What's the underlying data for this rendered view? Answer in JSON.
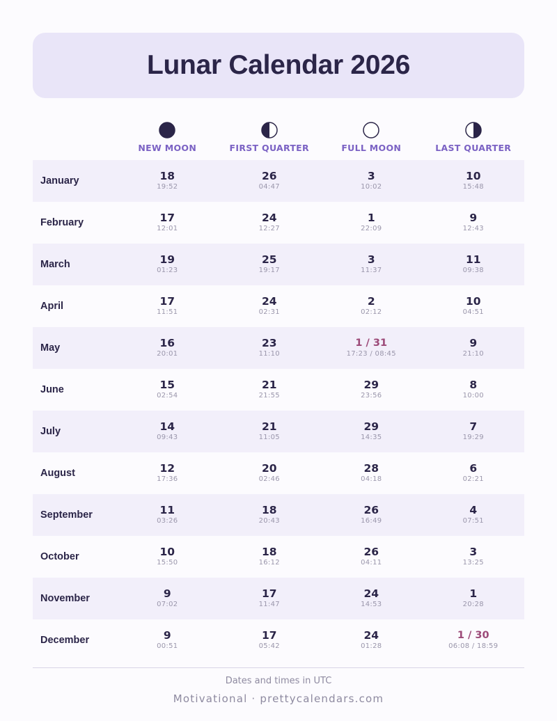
{
  "title": "Lunar Calendar 2026",
  "phases": [
    {
      "label": "NEW MOON",
      "icon": "new-moon-icon"
    },
    {
      "label": "FIRST QUARTER",
      "icon": "first-quarter-moon-icon"
    },
    {
      "label": "FULL MOON",
      "icon": "full-moon-icon"
    },
    {
      "label": "LAST QUARTER",
      "icon": "last-quarter-moon-icon"
    }
  ],
  "months": [
    {
      "name": "January",
      "cells": [
        {
          "day": "18",
          "time": "19:52"
        },
        {
          "day": "26",
          "time": "04:47"
        },
        {
          "day": "3",
          "time": "10:02"
        },
        {
          "day": "10",
          "time": "15:48"
        }
      ]
    },
    {
      "name": "February",
      "cells": [
        {
          "day": "17",
          "time": "12:01"
        },
        {
          "day": "24",
          "time": "12:27"
        },
        {
          "day": "1",
          "time": "22:09"
        },
        {
          "day": "9",
          "time": "12:43"
        }
      ]
    },
    {
      "name": "March",
      "cells": [
        {
          "day": "19",
          "time": "01:23"
        },
        {
          "day": "25",
          "time": "19:17"
        },
        {
          "day": "3",
          "time": "11:37"
        },
        {
          "day": "11",
          "time": "09:38"
        }
      ]
    },
    {
      "name": "April",
      "cells": [
        {
          "day": "17",
          "time": "11:51"
        },
        {
          "day": "24",
          "time": "02:31"
        },
        {
          "day": "2",
          "time": "02:12"
        },
        {
          "day": "10",
          "time": "04:51"
        }
      ]
    },
    {
      "name": "May",
      "cells": [
        {
          "day": "16",
          "time": "20:01"
        },
        {
          "day": "23",
          "time": "11:10"
        },
        {
          "day": "1 / 31",
          "time": "17:23 / 08:45",
          "special": true
        },
        {
          "day": "9",
          "time": "21:10"
        }
      ]
    },
    {
      "name": "June",
      "cells": [
        {
          "day": "15",
          "time": "02:54"
        },
        {
          "day": "21",
          "time": "21:55"
        },
        {
          "day": "29",
          "time": "23:56"
        },
        {
          "day": "8",
          "time": "10:00"
        }
      ]
    },
    {
      "name": "July",
      "cells": [
        {
          "day": "14",
          "time": "09:43"
        },
        {
          "day": "21",
          "time": "11:05"
        },
        {
          "day": "29",
          "time": "14:35"
        },
        {
          "day": "7",
          "time": "19:29"
        }
      ]
    },
    {
      "name": "August",
      "cells": [
        {
          "day": "12",
          "time": "17:36"
        },
        {
          "day": "20",
          "time": "02:46"
        },
        {
          "day": "28",
          "time": "04:18"
        },
        {
          "day": "6",
          "time": "02:21"
        }
      ]
    },
    {
      "name": "September",
      "cells": [
        {
          "day": "11",
          "time": "03:26"
        },
        {
          "day": "18",
          "time": "20:43"
        },
        {
          "day": "26",
          "time": "16:49"
        },
        {
          "day": "4",
          "time": "07:51"
        }
      ]
    },
    {
      "name": "October",
      "cells": [
        {
          "day": "10",
          "time": "15:50"
        },
        {
          "day": "18",
          "time": "16:12"
        },
        {
          "day": "26",
          "time": "04:11"
        },
        {
          "day": "3",
          "time": "13:25"
        }
      ]
    },
    {
      "name": "November",
      "cells": [
        {
          "day": "9",
          "time": "07:02"
        },
        {
          "day": "17",
          "time": "11:47"
        },
        {
          "day": "24",
          "time": "14:53"
        },
        {
          "day": "1",
          "time": "20:28"
        }
      ]
    },
    {
      "name": "December",
      "cells": [
        {
          "day": "9",
          "time": "00:51"
        },
        {
          "day": "17",
          "time": "05:42"
        },
        {
          "day": "24",
          "time": "01:28"
        },
        {
          "day": "1 / 30",
          "time": "06:08 / 18:59",
          "special": true
        }
      ]
    }
  ],
  "footer": {
    "timezone_note": "Dates and times in UTC",
    "credit": "Motivational · prettycalendars.com"
  },
  "colors": {
    "accent": "#7b62c4",
    "highlight": "#9c4a78",
    "banner": "#e9e5f8",
    "row_alt": "#f2effa",
    "text": "#2b2548"
  }
}
